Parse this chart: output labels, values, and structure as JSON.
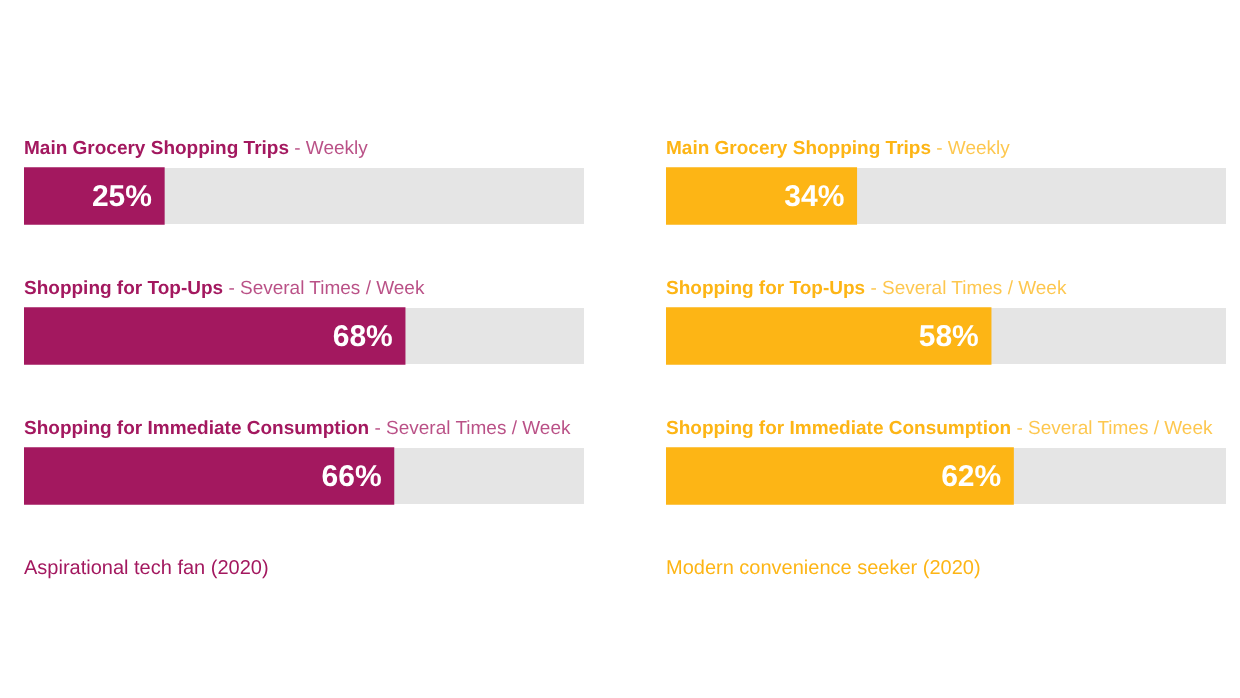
{
  "chart_data": [
    {
      "type": "bar",
      "orientation": "horizontal",
      "categories": [
        "Main Grocery Shopping Trips - Weekly",
        "Shopping for Top-Ups - Several Times / Week",
        "Shopping for Immediate Consumption - Several Times / Week"
      ],
      "values": [
        25,
        68,
        66
      ],
      "value_labels": [
        "25%",
        "68%",
        "66%"
      ],
      "color": "#a3185f",
      "xlim": [
        0,
        100
      ],
      "tick_labels": false,
      "legend": false,
      "annotations": [
        "Aspirational tech fan (2020)"
      ]
    },
    {
      "type": "bar",
      "orientation": "horizontal",
      "categories": [
        "Main Grocery Shopping Trips - Weekly",
        "Shopping for Top-Ups - Several Times / Week",
        "Shopping for Immediate Consumption - Several Times / Week"
      ],
      "values": [
        34,
        58,
        62
      ],
      "value_labels": [
        "34%",
        "58%",
        "62%"
      ],
      "color": "#fdb515",
      "xlim": [
        0,
        100
      ],
      "tick_labels": false,
      "legend": false,
      "annotations": [
        "Modern convenience seeker (2020)"
      ]
    }
  ]
}
